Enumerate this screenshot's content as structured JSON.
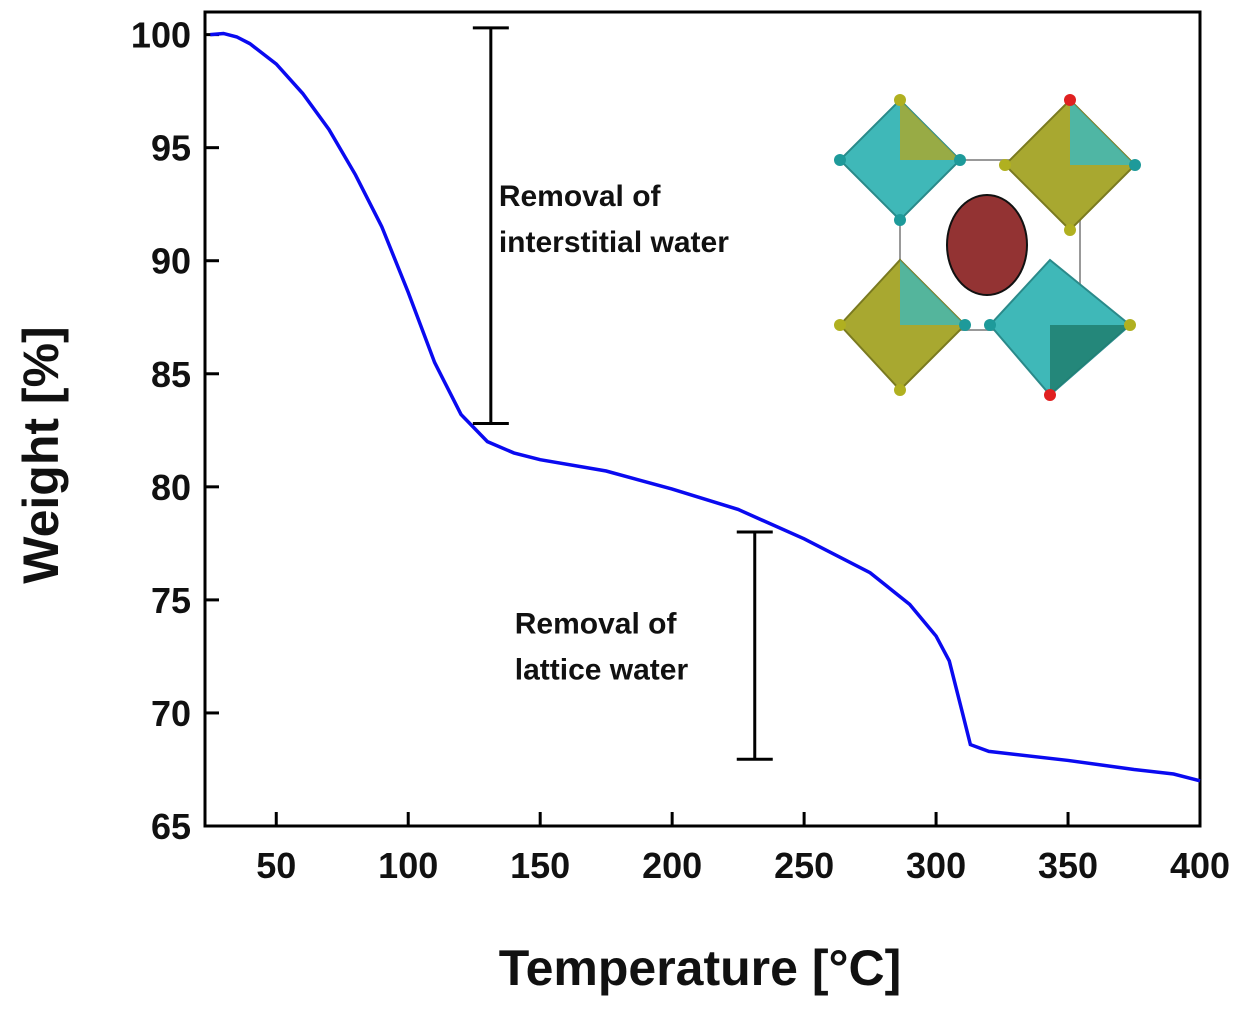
{
  "chart_data": {
    "type": "line",
    "x_label": "Temperature [°C]",
    "y_label": "Weight [%]",
    "x": [
      25,
      30,
      35,
      40,
      50,
      60,
      70,
      80,
      90,
      100,
      110,
      120,
      130,
      140,
      150,
      175,
      200,
      225,
      250,
      275,
      290,
      300,
      305,
      310,
      313,
      320,
      350,
      375,
      390,
      400
    ],
    "series": [
      {
        "color": "#0a0af0",
        "values": [
          100,
          100.05,
          99.9,
          99.6,
          98.7,
          97.4,
          95.8,
          93.8,
          91.5,
          88.6,
          85.5,
          83.2,
          82.0,
          81.5,
          81.2,
          80.7,
          79.9,
          79.0,
          77.7,
          76.2,
          74.8,
          73.4,
          72.3,
          70.0,
          68.6,
          68.3,
          67.9,
          67.5,
          67.3,
          67.0
        ]
      }
    ],
    "xlim": [
      23,
      400
    ],
    "ylim": [
      65,
      101
    ],
    "xticks": [
      50,
      100,
      150,
      200,
      250,
      300,
      350,
      400
    ],
    "yticks": [
      65,
      70,
      75,
      80,
      85,
      90,
      95,
      100
    ],
    "annotations": [
      {
        "lines": [
          "Removal of",
          "interstitial water"
        ],
        "x": 131.3,
        "y_range": [
          82.8,
          100.3
        ]
      },
      {
        "lines": [
          "Removal of",
          "lattice water"
        ],
        "x": 231.3,
        "y_range": [
          67.95,
          78.0
        ]
      }
    ]
  }
}
